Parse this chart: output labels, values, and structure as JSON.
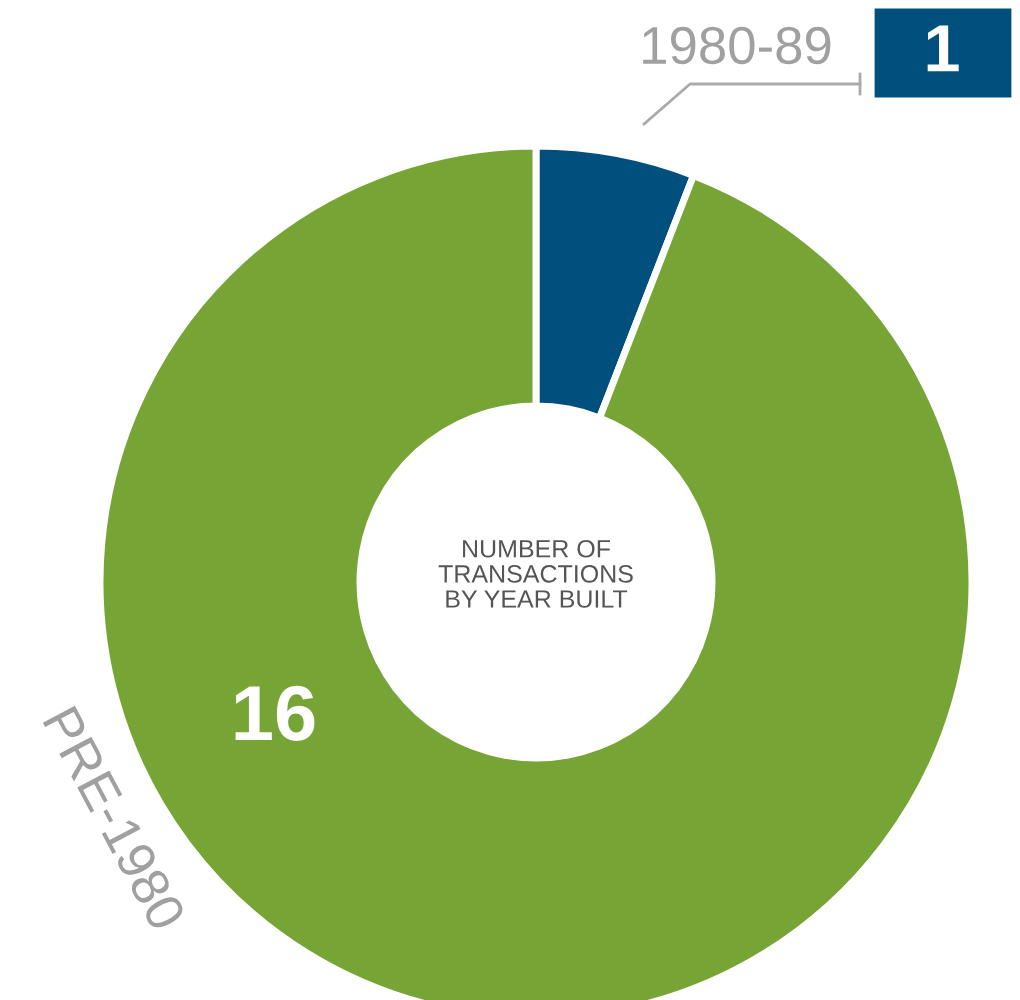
{
  "chart_data": {
    "type": "donut",
    "title": "NUMBER OF\nTRANSACTIONS\nBY YEAR BUILT",
    "categories": [
      "1980-89",
      "PRE-1980"
    ],
    "values": [
      1,
      16
    ],
    "colors": [
      "#004f7c",
      "#76a535"
    ],
    "data_labels": true,
    "legend": "top right"
  }
}
